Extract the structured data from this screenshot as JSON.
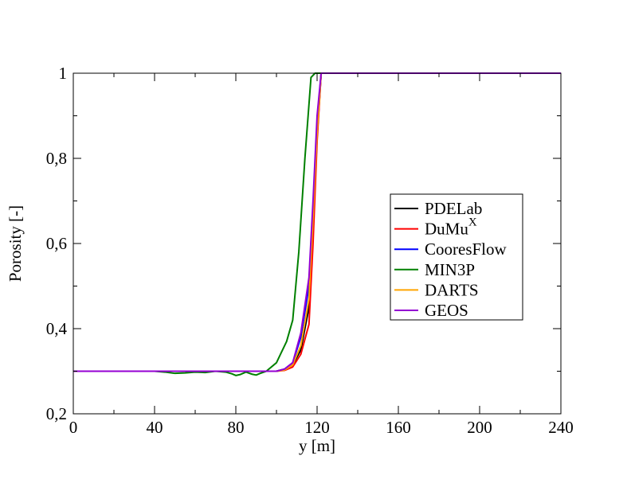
{
  "chart_data": {
    "type": "line",
    "xlabel": "y [m]",
    "ylabel": "Porosity [-]",
    "xlim": [
      0,
      240
    ],
    "ylim": [
      0.2,
      1
    ],
    "xticks": [
      0,
      40,
      80,
      120,
      160,
      200,
      240
    ],
    "xtick_labels": [
      "0",
      "40",
      "80",
      "120",
      "160",
      "200",
      "240"
    ],
    "yticks": [
      0.2,
      0.4,
      0.6,
      0.8,
      1
    ],
    "ytick_labels": [
      "0,2",
      "0,4",
      "0,6",
      "0,8",
      "1"
    ],
    "grid": false,
    "legend_position": "right-middle",
    "series": [
      {
        "name": "PDELab",
        "color": "#000000",
        "x": [
          0,
          20,
          40,
          60,
          80,
          90,
          95,
          100,
          104,
          108,
          112,
          116,
          118,
          120,
          122,
          126,
          240
        ],
        "y": [
          0.3,
          0.3,
          0.3,
          0.3,
          0.3,
          0.3,
          0.3,
          0.3,
          0.305,
          0.315,
          0.35,
          0.45,
          0.65,
          0.85,
          1.0,
          1.0,
          1.0
        ]
      },
      {
        "name": "DuMu",
        "name_superscript": "X",
        "color": "#ff0000",
        "x": [
          0,
          20,
          40,
          60,
          80,
          90,
          95,
          100,
          104,
          108,
          112,
          116,
          118,
          120,
          122,
          126,
          240
        ],
        "y": [
          0.3,
          0.3,
          0.3,
          0.3,
          0.3,
          0.3,
          0.3,
          0.3,
          0.302,
          0.31,
          0.34,
          0.41,
          0.6,
          0.84,
          1.0,
          1.0,
          1.0
        ]
      },
      {
        "name": "CooresFlow",
        "color": "#0000ff",
        "x": [
          0,
          20,
          40,
          60,
          80,
          90,
          95,
          100,
          104,
          108,
          112,
          116,
          118,
          120,
          122,
          126,
          240
        ],
        "y": [
          0.3,
          0.3,
          0.3,
          0.3,
          0.3,
          0.3,
          0.3,
          0.3,
          0.305,
          0.32,
          0.38,
          0.5,
          0.68,
          0.88,
          1.0,
          1.0,
          1.0
        ]
      },
      {
        "name": "MIN3P",
        "color": "#008000",
        "x": [
          0,
          20,
          40,
          45,
          50,
          55,
          60,
          65,
          70,
          75,
          78,
          80,
          82,
          85,
          88,
          90,
          92,
          95,
          100,
          102,
          105,
          108,
          111,
          114,
          117,
          119,
          122,
          126,
          240
        ],
        "y": [
          0.3,
          0.3,
          0.3,
          0.298,
          0.295,
          0.296,
          0.298,
          0.297,
          0.3,
          0.298,
          0.294,
          0.29,
          0.292,
          0.298,
          0.293,
          0.291,
          0.295,
          0.3,
          0.32,
          0.34,
          0.37,
          0.42,
          0.58,
          0.8,
          0.99,
          1.0,
          1.0,
          1.0,
          1.0
        ]
      },
      {
        "name": "DARTS",
        "color": "#ffa500",
        "x": [
          0,
          20,
          40,
          60,
          80,
          90,
          95,
          100,
          104,
          108,
          112,
          116,
          118,
          120,
          122,
          126,
          240
        ],
        "y": [
          0.3,
          0.3,
          0.3,
          0.3,
          0.3,
          0.3,
          0.3,
          0.3,
          0.303,
          0.315,
          0.36,
          0.47,
          0.66,
          0.86,
          1.0,
          1.0,
          1.0
        ]
      },
      {
        "name": "GEOS",
        "color": "#9400d3",
        "x": [
          0,
          20,
          40,
          60,
          80,
          90,
          95,
          100,
          104,
          108,
          112,
          116,
          118,
          120,
          122,
          126,
          240
        ],
        "y": [
          0.3,
          0.3,
          0.3,
          0.3,
          0.3,
          0.3,
          0.3,
          0.3,
          0.305,
          0.32,
          0.39,
          0.52,
          0.7,
          0.9,
          1.0,
          1.0,
          1.0
        ]
      }
    ]
  }
}
